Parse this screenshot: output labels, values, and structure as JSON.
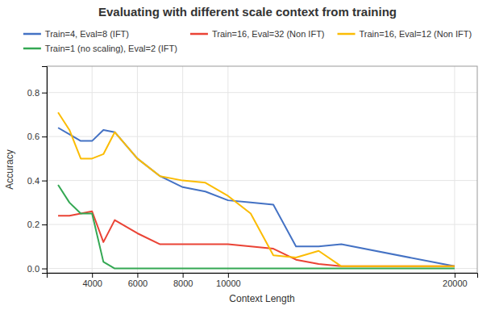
{
  "chart_data": {
    "type": "line",
    "title": "Evaluating with different scale context from training",
    "x_label": "Context Length",
    "y_label": "Accuracy",
    "xlim": [
      2000,
      21000
    ],
    "ylim": [
      -0.02,
      0.92
    ],
    "xticks": [
      4000,
      6000,
      8000,
      10000,
      20000
    ],
    "yticks": [
      {
        "value": 0.0,
        "label": "0.0"
      },
      0.2,
      0.4,
      0.6,
      0.8
    ],
    "grid": true,
    "legend": "top",
    "series": [
      {
        "name": "Train=4, Eval=8 (IFT)",
        "color": "#4472C4",
        "x": [
          2500,
          3000,
          3500,
          4000,
          4500,
          5000,
          6000,
          7000,
          8000,
          9000,
          10000,
          11000,
          12000,
          13000,
          14000,
          15000,
          20000
        ],
        "values": [
          0.64,
          0.61,
          0.58,
          0.58,
          0.63,
          0.62,
          0.5,
          0.42,
          0.37,
          0.35,
          0.31,
          0.3,
          0.29,
          0.1,
          0.1,
          0.11,
          0.01
        ]
      },
      {
        "name": "Train=16, Eval=32 (Non IFT)",
        "color": "#EA4335",
        "x": [
          2500,
          3000,
          3500,
          4000,
          4500,
          5000,
          6000,
          7000,
          8000,
          9000,
          10000,
          11000,
          12000,
          13000,
          14000,
          15000,
          20000
        ],
        "values": [
          0.24,
          0.24,
          0.25,
          0.26,
          0.12,
          0.22,
          0.16,
          0.11,
          0.11,
          0.11,
          0.11,
          0.1,
          0.09,
          0.04,
          0.02,
          0.01,
          0.01
        ]
      },
      {
        "name": "Train=16, Eval=12 (Non IFT)",
        "color": "#FBBC04",
        "x": [
          2500,
          3000,
          3500,
          4000,
          4500,
          5000,
          6000,
          7000,
          8000,
          9000,
          10000,
          11000,
          12000,
          13000,
          14000,
          15000,
          20000
        ],
        "values": [
          0.71,
          0.63,
          0.5,
          0.5,
          0.52,
          0.62,
          0.5,
          0.42,
          0.4,
          0.39,
          0.33,
          0.25,
          0.06,
          0.05,
          0.08,
          0.01,
          0.01
        ]
      },
      {
        "name": "Train=1 (no scaling), Eval=2 (IFT)",
        "color": "#34A853",
        "x": [
          2500,
          3000,
          3500,
          4000,
          4500,
          5000,
          6000,
          20000
        ],
        "values": [
          0.38,
          0.3,
          0.25,
          0.25,
          0.03,
          0.0,
          0.0,
          0.0
        ]
      }
    ]
  }
}
